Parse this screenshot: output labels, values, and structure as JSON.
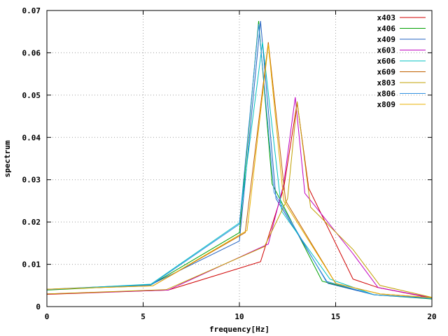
{
  "chart_data": {
    "type": "line",
    "title": "",
    "xlabel": "frequency[Hz]",
    "ylabel": "spectrum",
    "xlim": [
      0,
      20
    ],
    "ylim": [
      0,
      0.07
    ],
    "x_ticks": [
      0,
      5,
      10,
      15,
      20
    ],
    "x_tick_labels": [
      "0",
      "5",
      "10",
      "15",
      "20"
    ],
    "y_ticks": [
      0,
      0.01,
      0.02,
      0.03,
      0.04,
      0.05,
      0.06,
      0.07
    ],
    "y_tick_labels": [
      "0",
      "0.01",
      "0.02",
      "0.03",
      "0.04",
      "0.05",
      "0.06",
      "0.07"
    ],
    "grid": true,
    "legend_position": "top-right",
    "series": [
      {
        "name": "x403",
        "color": "#d00000",
        "x": [
          0,
          6.3,
          11.1,
          12.3,
          13.0,
          13.6,
          15.9,
          17.2,
          20
        ],
        "y": [
          0.0029,
          0.0039,
          0.0106,
          0.028,
          0.0482,
          0.028,
          0.0065,
          0.0045,
          0.002
        ]
      },
      {
        "name": "x406",
        "color": "#00a000",
        "x": [
          0,
          5.4,
          10.0,
          11.0,
          11.7,
          14.3,
          17.0,
          20
        ],
        "y": [
          0.0039,
          0.0051,
          0.0175,
          0.0675,
          0.029,
          0.006,
          0.0028,
          0.0018
        ]
      },
      {
        "name": "x409",
        "color": "#2060c0",
        "x": [
          0,
          5.4,
          10.0,
          11.1,
          11.9,
          14.6,
          17.0,
          20
        ],
        "y": [
          0.0041,
          0.0052,
          0.0155,
          0.0675,
          0.0255,
          0.0055,
          0.0028,
          0.002
        ]
      },
      {
        "name": "x603",
        "color": "#c000c0",
        "x": [
          0,
          6.3,
          11.5,
          12.3,
          12.9,
          13.4,
          15.9,
          17.2,
          20
        ],
        "y": [
          0.003,
          0.0039,
          0.0148,
          0.029,
          0.0495,
          0.0268,
          0.0125,
          0.0045,
          0.0021
        ]
      },
      {
        "name": "x606",
        "color": "#00c0c0",
        "x": [
          0,
          5.4,
          10.0,
          11.2,
          12.2,
          14.7,
          17.0,
          20
        ],
        "y": [
          0.004,
          0.0053,
          0.0198,
          0.0625,
          0.0225,
          0.0065,
          0.0028,
          0.0019
        ]
      },
      {
        "name": "x609",
        "color": "#c06000",
        "x": [
          0,
          5.5,
          10.3,
          11.5,
          12.4,
          15.0,
          17.3,
          20
        ],
        "y": [
          0.0041,
          0.0049,
          0.0175,
          0.0625,
          0.025,
          0.0055,
          0.003,
          0.0021
        ]
      },
      {
        "name": "x803",
        "color": "#c0a000",
        "x": [
          0,
          6.2,
          11.3,
          12.5,
          13.0,
          13.7,
          15.9,
          17.3,
          20
        ],
        "y": [
          0.003,
          0.004,
          0.0142,
          0.0255,
          0.0485,
          0.0235,
          0.0135,
          0.005,
          0.0022
        ]
      },
      {
        "name": "x806",
        "color": "#3090e0",
        "x": [
          0,
          5.4,
          10.0,
          11.0,
          11.8,
          14.5,
          17.0,
          20
        ],
        "y": [
          0.004,
          0.0051,
          0.0195,
          0.0668,
          0.027,
          0.006,
          0.0028,
          0.0019
        ]
      },
      {
        "name": "x809",
        "color": "#e8b000",
        "x": [
          0,
          5.5,
          10.4,
          11.5,
          12.3,
          15.0,
          17.3,
          20
        ],
        "y": [
          0.0041,
          0.0049,
          0.018,
          0.062,
          0.025,
          0.0055,
          0.003,
          0.0021
        ]
      }
    ]
  }
}
